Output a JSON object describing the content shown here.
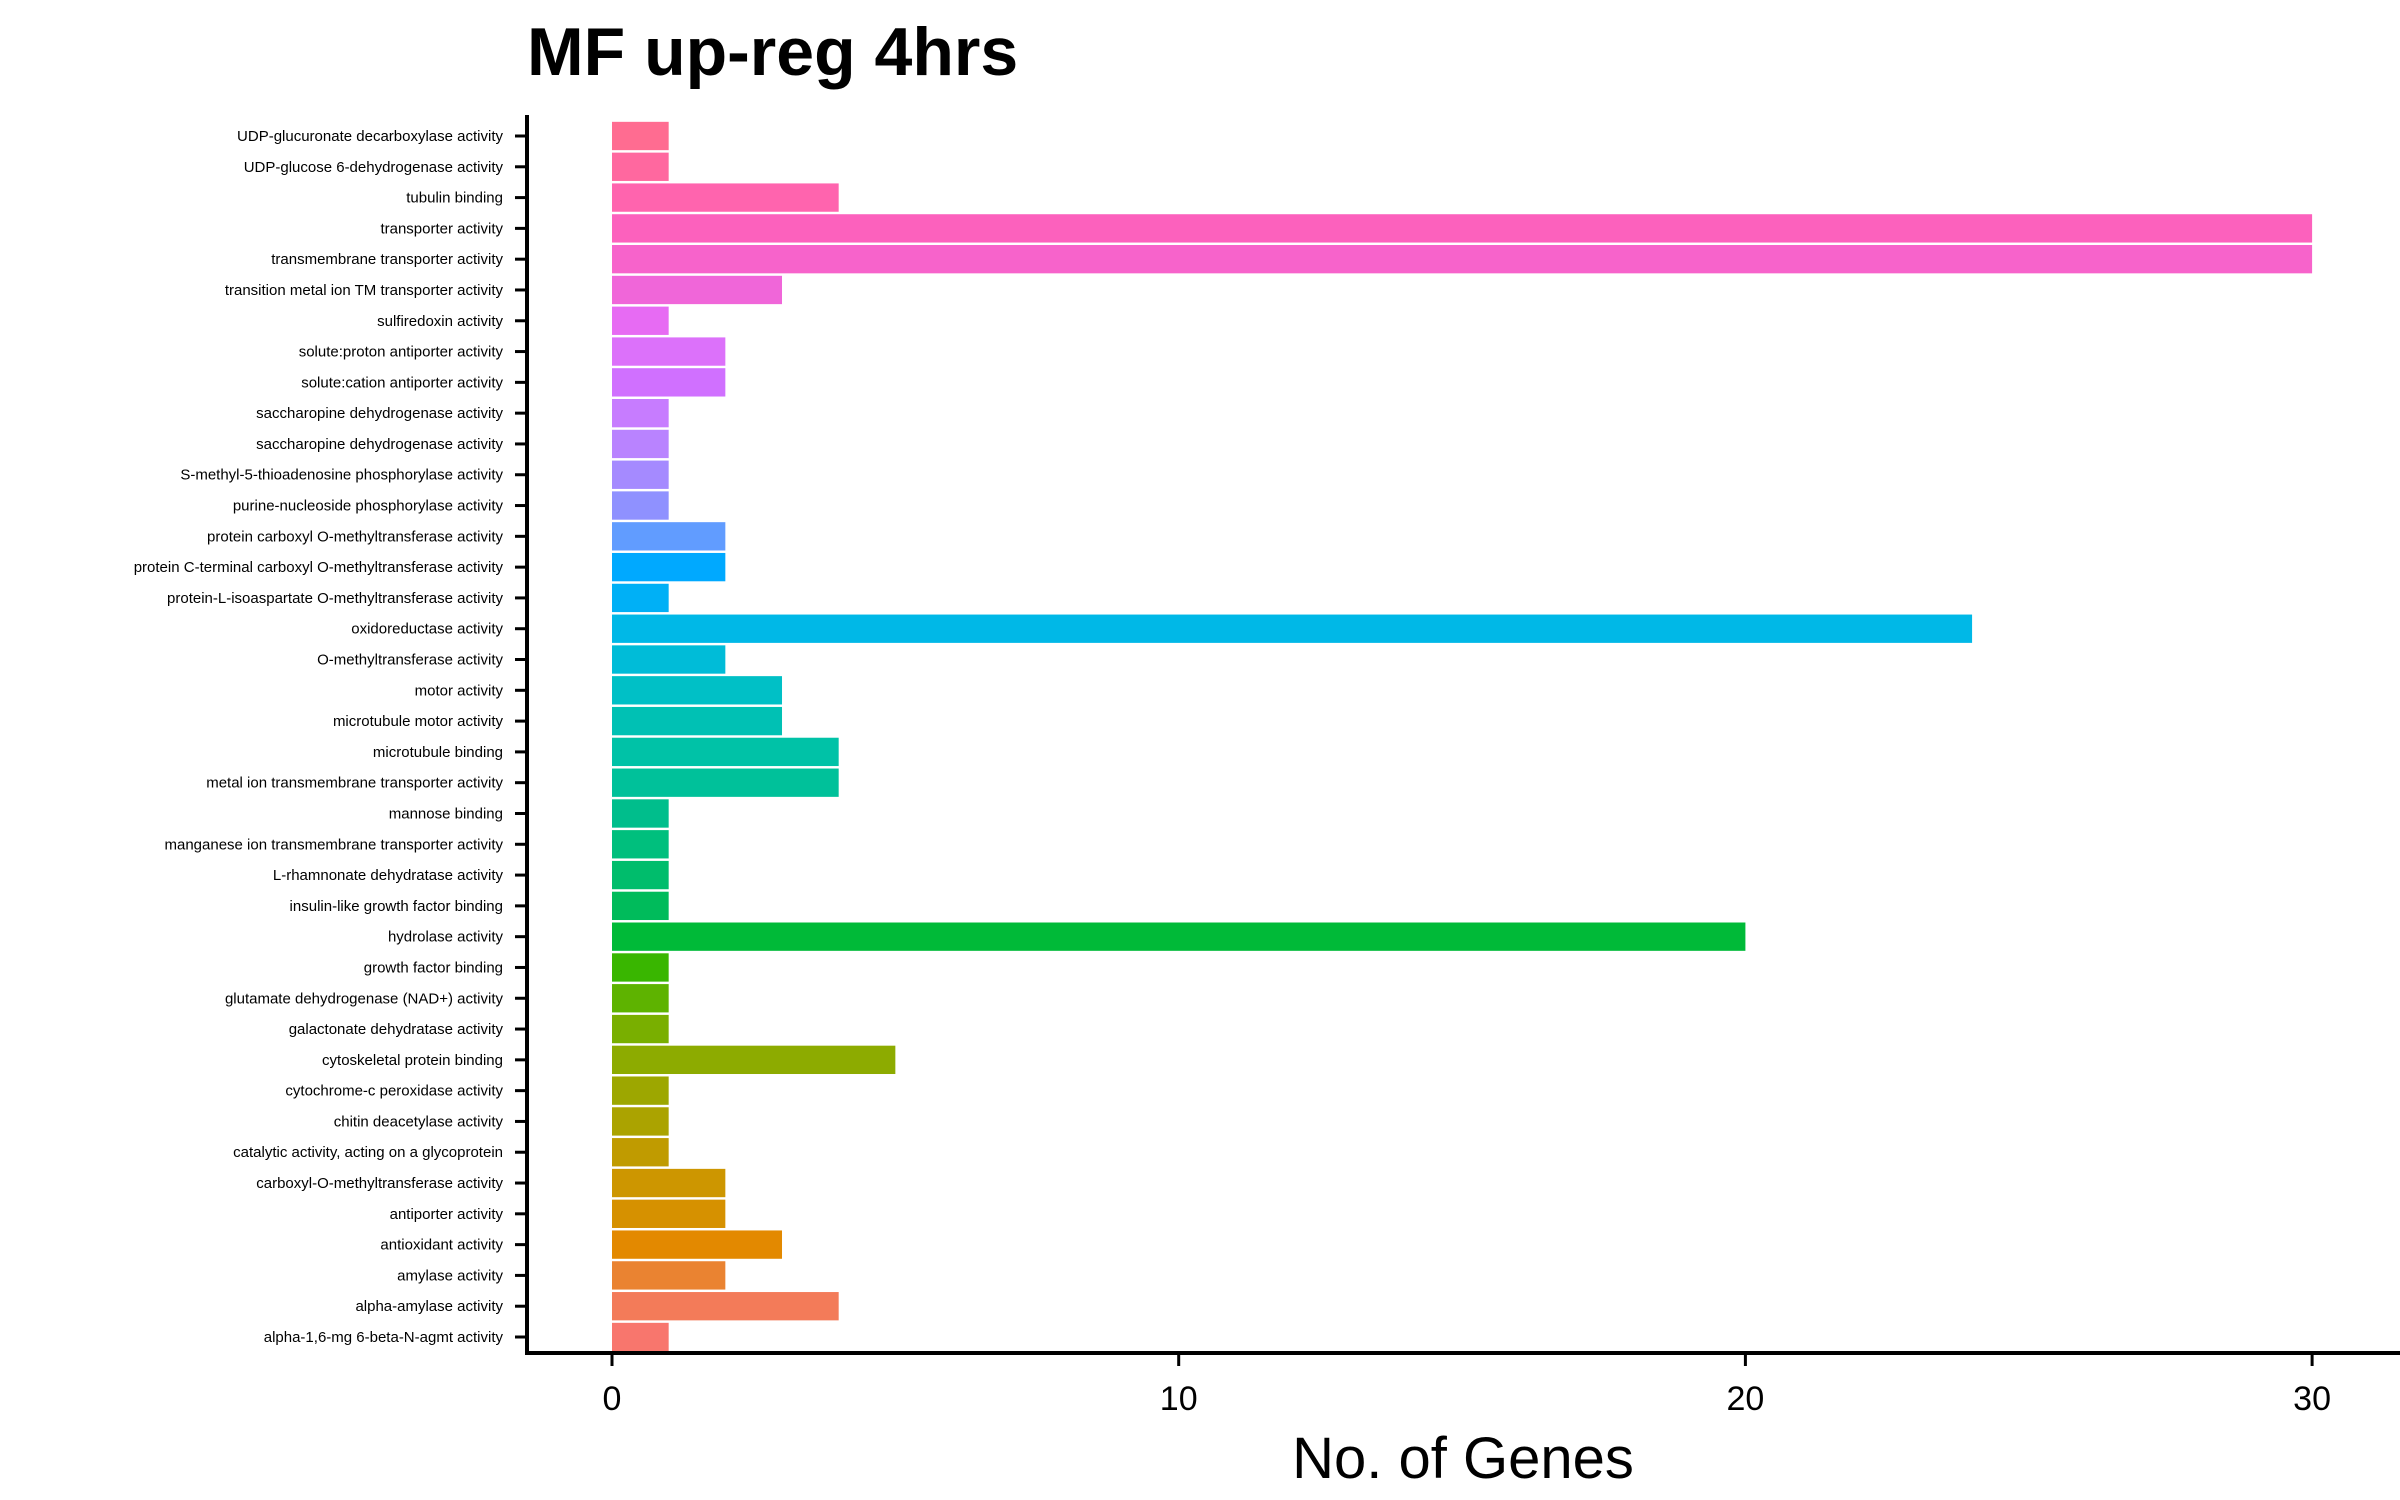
{
  "chart_data": {
    "type": "bar",
    "orientation": "horizontal",
    "title": "MF up-reg 4hrs",
    "xlabel": "No. of Genes",
    "ylabel": "",
    "xlim": [
      -1.5,
      31.5
    ],
    "xticks": [
      0,
      10,
      20,
      30
    ],
    "grid": false,
    "legend": "none",
    "categories": [
      "UDP-glucuronate decarboxylase activity",
      "UDP-glucose 6-dehydrogenase activity",
      "tubulin binding",
      "transporter activity",
      "transmembrane transporter activity",
      "transition metal ion TM transporter activity",
      "sulfiredoxin activity",
      "solute:proton antiporter activity",
      "solute:cation antiporter activity",
      "saccharopine dehydrogenase activity",
      "saccharopine dehydrogenase  activity",
      "S-methyl-5-thioadenosine phosphorylase activity",
      "purine-nucleoside phosphorylase activity",
      "protein carboxyl O-methyltransferase activity",
      "protein C-terminal carboxyl O-methyltransferase activity",
      "protein-L-isoaspartate O-methyltransferase activity",
      "oxidoreductase activity",
      "O-methyltransferase activity",
      "motor activity",
      "microtubule motor activity",
      "microtubule binding",
      "metal ion transmembrane transporter activity",
      "mannose binding",
      "manganese ion transmembrane transporter activity",
      "L-rhamnonate dehydratase activity",
      "insulin-like growth factor binding",
      "hydrolase activity",
      "growth factor binding",
      "glutamate dehydrogenase (NAD+) activity",
      "galactonate dehydratase activity",
      "cytoskeletal protein binding",
      "cytochrome-c peroxidase activity",
      "chitin deacetylase activity",
      "catalytic activity, acting on a glycoprotein",
      "carboxyl-O-methyltransferase activity",
      "antiporter activity",
      "antioxidant activity",
      "amylase activity",
      "alpha-amylase activity",
      "alpha-1,6-mg 6-beta-N-agmt activity"
    ],
    "values": [
      1,
      1,
      4,
      30,
      30,
      3,
      1,
      2,
      2,
      1,
      1,
      1,
      1,
      2,
      2,
      1,
      24,
      2,
      3,
      3,
      4,
      4,
      1,
      1,
      1,
      1,
      20,
      1,
      1,
      1,
      5,
      1,
      1,
      1,
      2,
      2,
      3,
      2,
      4,
      1
    ],
    "colors": [
      "#FF6C91",
      "#FF689F",
      "#FF64AE",
      "#FC61BD",
      "#F763CB",
      "#F066D9",
      "#E76BF3",
      "#DC71FA",
      "#D070FF",
      "#C77CFF",
      "#B983FF",
      "#A58AFF",
      "#8F91FF",
      "#619CFF",
      "#00A9FF",
      "#00B0F6",
      "#00B8E7",
      "#00BCD8",
      "#00C0C6",
      "#00C1B4",
      "#00C2A7",
      "#00C19A",
      "#00BE8C",
      "#00BF7D",
      "#00BD6C",
      "#00BB5B",
      "#00BA38",
      "#39B600",
      "#5EB300",
      "#79AF00",
      "#8DAB00",
      "#9DA700",
      "#ABA300",
      "#C09B00",
      "#CD9600",
      "#D69100",
      "#E38900",
      "#EA8331",
      "#F37B59",
      "#F8766D"
    ]
  }
}
